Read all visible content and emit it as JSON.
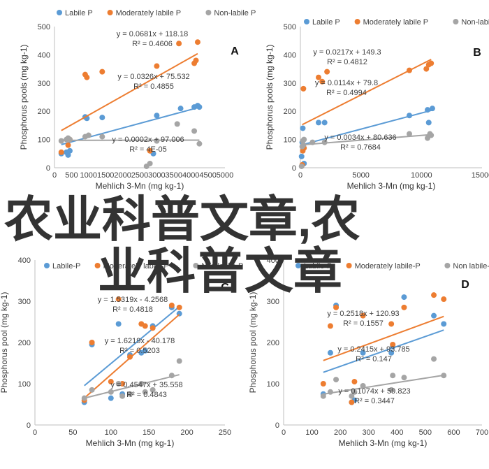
{
  "watermark": {
    "line1": "农业科普文章,农",
    "line2": "业科普文章"
  },
  "chart_data": [
    {
      "type": "scatter",
      "panel": "A",
      "xlabel": "Mehlich 3-Mn (mg kg-1)",
      "ylabel": "Phosphorus pools (mg kg-1)",
      "xlim": [
        0,
        5000
      ],
      "ylim": [
        0,
        500
      ],
      "xticks": [
        0,
        500,
        1000,
        1500,
        2000,
        2500,
        3000,
        3500,
        4000,
        4500,
        5000
      ],
      "yticks": [
        0,
        100,
        200,
        300,
        400,
        500
      ],
      "series": [
        {
          "name": "Labile P",
          "color": "#5b9bd5",
          "x": [
            200,
            350,
            400,
            450,
            900,
            950,
            1400,
            2900,
            3000,
            3700,
            4100,
            4200,
            4250
          ],
          "y": [
            50,
            55,
            45,
            60,
            180,
            175,
            178,
            50,
            185,
            210,
            215,
            220,
            215
          ],
          "trend": {
            "slope": 0.0326,
            "intercept": 75.532
          },
          "eq": "y = 0.0326x + 75.532",
          "r2": "R² = 0.4855"
        },
        {
          "name": "Moderately labile P",
          "color": "#ed7d31",
          "x": [
            200,
            400,
            450,
            900,
            950,
            1400,
            2800,
            3000,
            3650,
            4100,
            4150,
            4200
          ],
          "y": [
            55,
            80,
            100,
            330,
            320,
            340,
            60,
            360,
            440,
            370,
            380,
            445
          ],
          "trend": {
            "slope": 0.0681,
            "intercept": 118.18
          },
          "eq": "y = 0.0681x + 118.18",
          "r2": "R² = 0.4606"
        },
        {
          "name": "Non-labile P",
          "color": "#a5a5a5",
          "x": [
            200,
            350,
            400,
            450,
            900,
            1000,
            1400,
            2700,
            2800,
            3000,
            3600,
            4100,
            4250
          ],
          "y": [
            95,
            100,
            105,
            100,
            110,
            115,
            110,
            5,
            15,
            95,
            155,
            130,
            85
          ],
          "trend": {
            "slope": 0.0002,
            "intercept": 97.006
          },
          "eq": "y = 0.0002x + 97.006",
          "r2": "R² = 4E-05"
        }
      ]
    },
    {
      "type": "scatter",
      "panel": "B",
      "xlabel": "Mehlich 3-Mn (mg kg-1)",
      "ylabel": "Phosphorus pools (mg kg-1)",
      "xlim": [
        0,
        15000
      ],
      "ylim": [
        0,
        500
      ],
      "xticks": [
        0,
        5000,
        10000,
        15000
      ],
      "yticks": [
        0,
        100,
        200,
        300,
        400,
        500
      ],
      "series": [
        {
          "name": "Labile P",
          "color": "#5b9bd5",
          "x": [
            100,
            150,
            200,
            250,
            300,
            1500,
            2000,
            9000,
            10500,
            10600,
            10900
          ],
          "y": [
            40,
            90,
            140,
            80,
            15,
            160,
            160,
            185,
            205,
            160,
            210
          ],
          "trend": {
            "slope": 0.0114,
            "intercept": 79.8
          },
          "eq": "y = 0.0114x + 79.8",
          "r2": "R² = 0.4994"
        },
        {
          "name": "Moderately labile P",
          "color": "#ed7d31",
          "x": [
            150,
            200,
            250,
            300,
            1500,
            1800,
            2200,
            9000,
            10400,
            10600,
            10800
          ],
          "y": [
            10,
            60,
            280,
            70,
            320,
            305,
            340,
            345,
            350,
            365,
            370
          ],
          "trend": {
            "slope": 0.0217,
            "intercept": 149.3
          },
          "eq": "y = 0.0217x + 149.3",
          "r2": "R² = 0.4812"
        },
        {
          "name": "Non-labile P",
          "color": "#a5a5a5",
          "x": [
            100,
            150,
            200,
            250,
            300,
            1000,
            2000,
            9000,
            10500,
            10700,
            10800
          ],
          "y": [
            5,
            75,
            95,
            80,
            100,
            90,
            90,
            120,
            105,
            120,
            115
          ],
          "trend": {
            "slope": 0.0034,
            "intercept": 80.636
          },
          "eq": "y = 0.0034x + 80.636",
          "r2": "R² = 0.7684"
        }
      ]
    },
    {
      "type": "scatter",
      "panel": "C",
      "xlabel": "Mehlich 3-Mn (mg kg-1)",
      "ylabel": "Phosphorus pool (mg kg-1)",
      "xlim": [
        0,
        250
      ],
      "ylim": [
        0,
        400
      ],
      "xticks": [
        0,
        50,
        100,
        150,
        200,
        250
      ],
      "yticks": [
        0,
        100,
        200,
        300,
        400
      ],
      "series": [
        {
          "name": "Labile-P",
          "color": "#5b9bd5",
          "x": [
            65,
            75,
            100,
            110,
            115,
            125,
            140,
            145,
            155,
            180,
            190
          ],
          "y": [
            55,
            195,
            65,
            245,
            75,
            170,
            175,
            180,
            240,
            285,
            270
          ],
          "trend": {
            "slope": 1.5319,
            "intercept": -4.2568
          },
          "eq": "y = 1.5319x - 4.2568",
          "r2": "R² = 0.4818"
        },
        {
          "name": "Moderately labile-P",
          "color": "#ed7d31",
          "x": [
            65,
            75,
            100,
            110,
            115,
            125,
            140,
            145,
            155,
            180,
            190
          ],
          "y": [
            60,
            200,
            105,
            305,
            100,
            165,
            245,
            240,
            235,
            290,
            285
          ],
          "trend": {
            "slope": 1.6219,
            "intercept": -40.178
          },
          "eq": "y = 1.6219x - 40.178",
          "r2": "R² = 0.5203"
        },
        {
          "name": "Non labile-P",
          "color": "#a5a5a5",
          "x": [
            65,
            75,
            100,
            110,
            115,
            125,
            140,
            145,
            155,
            180,
            190
          ],
          "y": [
            65,
            85,
            80,
            100,
            70,
            75,
            100,
            80,
            85,
            120,
            155
          ],
          "trend": {
            "slope": 0.4547,
            "intercept": 35.558
          },
          "eq": "y = 0.4547x + 35.558",
          "r2": "R² = 0.4843"
        }
      ]
    },
    {
      "type": "scatter",
      "panel": "D",
      "xlabel": "Mehlich 3-Mn (mg kg-1)",
      "ylabel": "Phosphorus pool (mg kg-1)",
      "xlim": [
        0,
        700
      ],
      "ylim": [
        0,
        400
      ],
      "xticks": [
        0,
        100,
        200,
        300,
        400,
        500,
        600,
        700
      ],
      "yticks": [
        0,
        100,
        200,
        300,
        400
      ],
      "series": [
        {
          "name": "Labile-P",
          "color": "#5b9bd5",
          "x": [
            140,
            165,
            185,
            240,
            250,
            280,
            380,
            385,
            425,
            530,
            565
          ],
          "y": [
            75,
            175,
            290,
            55,
            60,
            175,
            175,
            190,
            310,
            265,
            245
          ],
          "trend": {
            "slope": 0.2415,
            "intercept": 93.785
          },
          "eq": "y = 0.2415x + 93.785",
          "r2": "R² = 0.147"
        },
        {
          "name": "Moderately labile-P",
          "color": "#ed7d31",
          "x": [
            140,
            165,
            185,
            240,
            250,
            280,
            380,
            385,
            425,
            530,
            565
          ],
          "y": [
            100,
            240,
            285,
            55,
            105,
            265,
            245,
            195,
            285,
            315,
            305
          ],
          "trend": {
            "slope": 0.2518,
            "intercept": 120.93
          },
          "eq": "y = 0.2518x + 120.93",
          "r2": "R² = 0.1557"
        },
        {
          "name": "Non labile-P",
          "color": "#a5a5a5",
          "x": [
            140,
            165,
            185,
            240,
            250,
            280,
            380,
            385,
            425,
            530,
            565
          ],
          "y": [
            70,
            80,
            110,
            70,
            80,
            95,
            85,
            120,
            115,
            160,
            120
          ],
          "trend": {
            "slope": 0.1074,
            "intercept": 59.823
          },
          "eq": "y = 0.1074x + 59.823",
          "r2": "R² = 0.3447"
        }
      ]
    }
  ]
}
